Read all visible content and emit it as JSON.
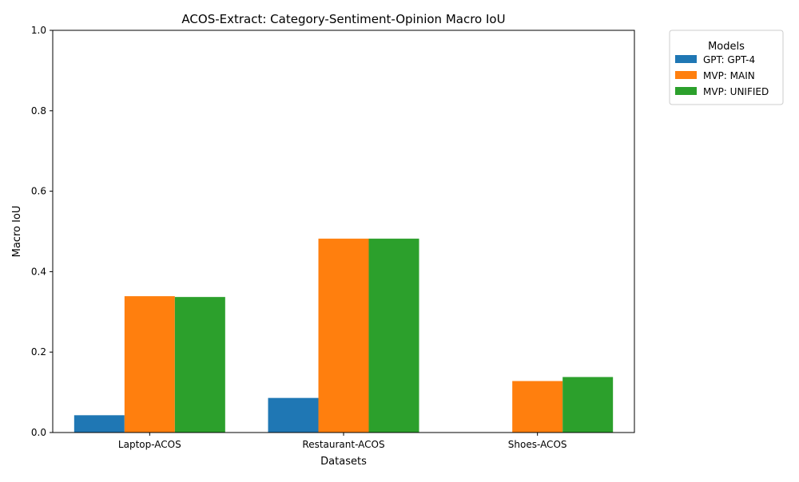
{
  "chart_data": {
    "type": "bar",
    "title": "ACOS-Extract: Category-Sentiment-Opinion Macro IoU",
    "xlabel": "Datasets",
    "ylabel": "Macro IoU",
    "ylim": [
      0,
      1.0
    ],
    "yticks": [
      "0.0",
      "0.2",
      "0.4",
      "0.6",
      "0.8",
      "1.0"
    ],
    "categories": [
      "Laptop-ACOS",
      "Restaurant-ACOS",
      "Shoes-ACOS"
    ],
    "series": [
      {
        "name": "GPT: GPT-4",
        "color": "#1f77b4",
        "values": [
          0.043,
          0.086,
          0.0
        ]
      },
      {
        "name": "MVP: MAIN",
        "color": "#ff7f0e",
        "values": [
          0.339,
          0.482,
          0.128
        ]
      },
      {
        "name": "MVP: UNIFIED",
        "color": "#2ca02c",
        "values": [
          0.337,
          0.482,
          0.138
        ]
      }
    ],
    "legend": {
      "title": "Models",
      "placement": "outside-top-right"
    },
    "grid": false
  }
}
